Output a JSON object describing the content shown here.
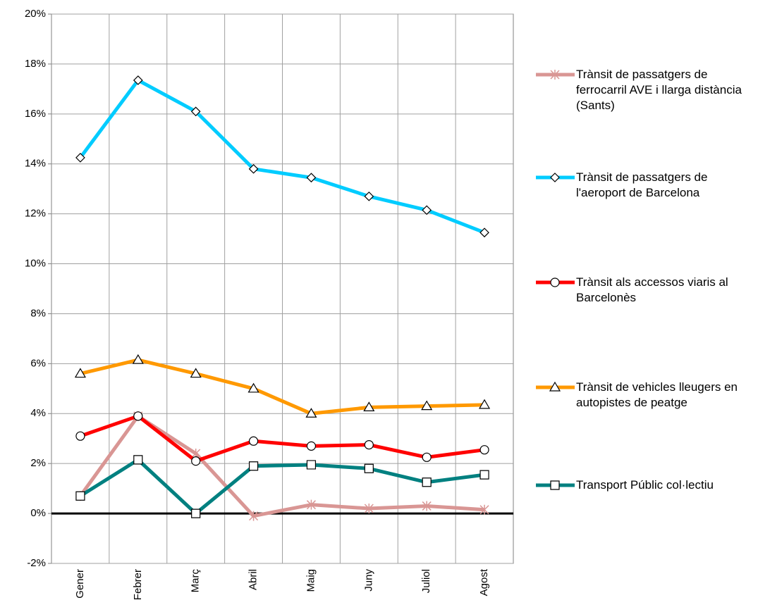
{
  "chart_data": {
    "type": "line",
    "categories": [
      "Gener",
      "Febrer",
      "Març",
      "Abril",
      "Maig",
      "Juny",
      "Juliol",
      "Agost"
    ],
    "series": [
      {
        "name": "Trànsit de passatgers de ferrocarril AVE i llarga distància (Sants)",
        "color": "#d99694",
        "marker": "star",
        "values": [
          0.7,
          3.9,
          2.4,
          -0.1,
          0.35,
          0.2,
          0.3,
          0.15
        ]
      },
      {
        "name": "Trànsit de passatgers de l'aeroport de Barcelona",
        "color": "#00ccff",
        "marker": "diamond",
        "values": [
          14.25,
          17.35,
          16.1,
          13.8,
          13.45,
          12.7,
          12.15,
          11.25
        ]
      },
      {
        "name": "Trànsit als accessos viaris al Barcelonès",
        "color": "#ff0000",
        "marker": "circle",
        "values": [
          3.1,
          3.9,
          2.1,
          2.9,
          2.7,
          2.75,
          2.25,
          2.55
        ]
      },
      {
        "name": "Trànsit de vehicles lleugers en autopistes de peatge",
        "color": "#ff9900",
        "marker": "triangle",
        "values": [
          5.6,
          6.15,
          5.6,
          5.0,
          4.0,
          4.25,
          4.3,
          4.35
        ]
      },
      {
        "name": "Transport Públic col·lectiu",
        "color": "#008080",
        "marker": "square",
        "values": [
          0.7,
          2.15,
          0.0,
          1.9,
          1.95,
          1.8,
          1.25,
          1.55
        ]
      }
    ],
    "ylim": [
      -2,
      20
    ],
    "yticks": [
      {
        "value": -2,
        "label": "-2%"
      },
      {
        "value": 0,
        "label": "0%"
      },
      {
        "value": 2,
        "label": "2%"
      },
      {
        "value": 4,
        "label": "4%"
      },
      {
        "value": 6,
        "label": "6%"
      },
      {
        "value": 8,
        "label": "8%"
      },
      {
        "value": 10,
        "label": "10%"
      },
      {
        "value": 12,
        "label": "12%"
      },
      {
        "value": 14,
        "label": "14%"
      },
      {
        "value": 16,
        "label": "16%"
      },
      {
        "value": 18,
        "label": "18%"
      },
      {
        "value": 20,
        "label": "20%"
      }
    ],
    "grid": true,
    "legend": "right"
  }
}
